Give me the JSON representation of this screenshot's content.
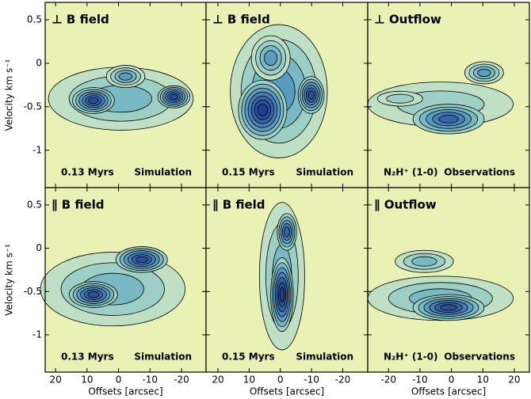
{
  "chart_data": [
    {
      "type": "contour",
      "title": "⊥ B field",
      "annotations": [
        "0.13 Myrs",
        "Simulation"
      ],
      "ylabel": "Velocity km s⁻¹",
      "xlim": [
        23.3,
        -27.8
      ],
      "xticks": [
        20,
        10,
        0,
        -10,
        -20
      ],
      "ylim": [
        -1.43,
        0.7
      ],
      "yticks": [
        0.5,
        0,
        -0.5,
        -1
      ]
    },
    {
      "type": "contour",
      "title": "⊥ B field",
      "annotations": [
        "0.15 Myrs",
        "Simulation"
      ],
      "xlim": [
        23.8,
        -28
      ],
      "xticks": [
        20,
        10,
        0,
        -10,
        -20
      ],
      "ylim": [
        -1.43,
        0.7
      ],
      "yticks": [
        0.5,
        0,
        -0.5,
        -1
      ]
    },
    {
      "type": "contour",
      "title": "⊥ Outflow",
      "annotations": [
        "N₂H⁺ (1-0)",
        "Observations"
      ],
      "xlim": [
        -26.6,
        24.8
      ],
      "xticks": [
        -20,
        -10,
        0,
        10,
        20
      ],
      "ylim": [
        -1.43,
        0.7
      ],
      "yticks": [
        0.5,
        0,
        -0.5,
        -1
      ]
    },
    {
      "type": "contour",
      "title": "∥ B field",
      "annotations": [
        "0.13 Myrs",
        "Simulation"
      ],
      "ylabel": "Velocity km s⁻¹",
      "xlabel": "Offsets [arcsec]",
      "xlim": [
        23.3,
        -27.8
      ],
      "xticks": [
        20,
        10,
        0,
        -10,
        -20
      ],
      "ylim": [
        -1.43,
        0.7
      ],
      "yticks": [
        0.5,
        0,
        -0.5,
        -1
      ]
    },
    {
      "type": "contour",
      "title": "∥ B field",
      "annotations": [
        "0.15 Myrs",
        "Simulation"
      ],
      "xlabel": "Offsets [arcsec]",
      "xlim": [
        23.8,
        -28
      ],
      "xticks": [
        20,
        10,
        0,
        -10,
        -20
      ],
      "ylim": [
        -1.43,
        0.7
      ],
      "yticks": [
        0.5,
        0,
        -0.5,
        -1
      ]
    },
    {
      "type": "contour",
      "title": "∥ Outflow",
      "annotations": [
        "N₂H⁺ (1-0)",
        "Observations"
      ],
      "xlabel": "Offsets [arcsec]",
      "xlim": [
        -26.6,
        24.8
      ],
      "xticks": [
        -20,
        -10,
        0,
        10,
        20
      ],
      "ylim": [
        -1.43,
        0.7
      ],
      "yticks": [
        0.5,
        0,
        -0.5,
        -1
      ]
    }
  ]
}
